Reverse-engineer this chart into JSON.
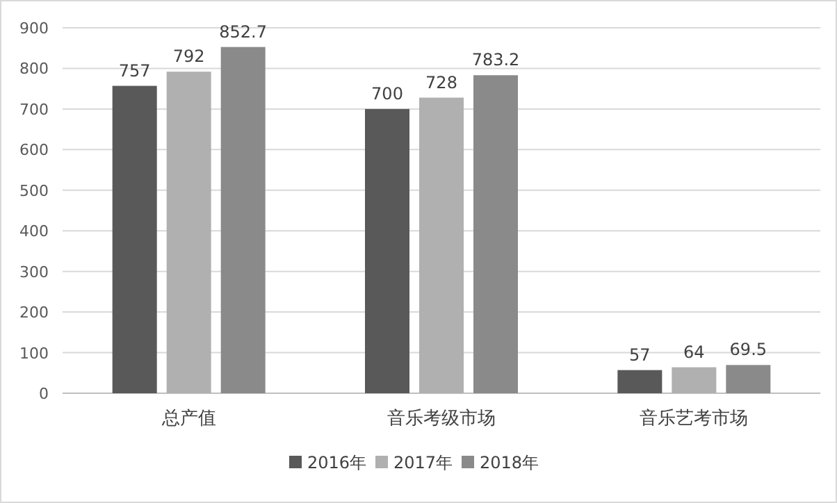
{
  "chart_data": {
    "type": "bar",
    "categories": [
      "总产值",
      "音乐考级市场",
      "音乐艺考市场"
    ],
    "series": [
      {
        "name": "2016年",
        "color": "#595959",
        "values": [
          757,
          700,
          57
        ]
      },
      {
        "name": "2017年",
        "color": "#b0b0b0",
        "values": [
          792,
          728,
          64
        ]
      },
      {
        "name": "2018年",
        "color": "#8a8a8a",
        "values": [
          852.7,
          783.2,
          69.5
        ]
      }
    ],
    "ylim": [
      0,
      900
    ],
    "yticks": [
      0,
      100,
      200,
      300,
      400,
      500,
      600,
      700,
      800,
      900
    ],
    "grid": "y",
    "legend": "bottom",
    "data_labels": true
  }
}
